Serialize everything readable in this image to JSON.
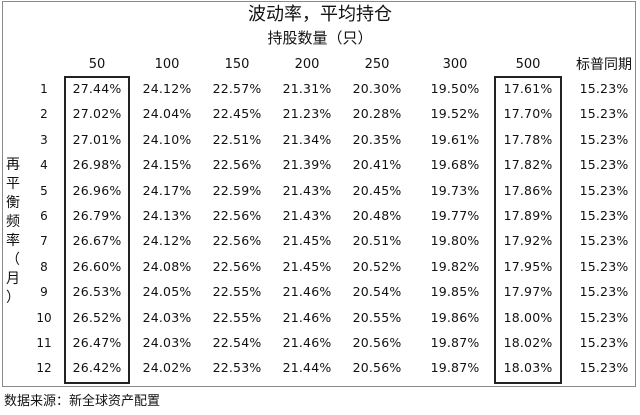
{
  "title": "波动率，平均持仓",
  "subtitle": "持股数量（只）",
  "columns": [
    "50",
    "100",
    "150",
    "200",
    "250",
    "300",
    "500",
    "标普同期"
  ],
  "vertical_label": [
    "再",
    "平",
    "衡",
    "频",
    "率",
    "（",
    "月",
    "）"
  ],
  "rows": [
    {
      "label": "1",
      "values": [
        "27.44%",
        "24.12%",
        "22.57%",
        "21.31%",
        "20.30%",
        "19.50%",
        "17.61%",
        "15.23%"
      ]
    },
    {
      "label": "2",
      "values": [
        "27.02%",
        "24.04%",
        "22.45%",
        "21.23%",
        "20.28%",
        "19.52%",
        "17.70%",
        "15.23%"
      ]
    },
    {
      "label": "3",
      "values": [
        "27.01%",
        "24.10%",
        "22.51%",
        "21.34%",
        "20.35%",
        "19.61%",
        "17.78%",
        "15.23%"
      ]
    },
    {
      "label": "4",
      "values": [
        "26.98%",
        "24.15%",
        "22.56%",
        "21.39%",
        "20.41%",
        "19.68%",
        "17.82%",
        "15.23%"
      ]
    },
    {
      "label": "5",
      "values": [
        "26.96%",
        "24.17%",
        "22.59%",
        "21.43%",
        "20.45%",
        "19.73%",
        "17.86%",
        "15.23%"
      ]
    },
    {
      "label": "6",
      "values": [
        "26.79%",
        "24.13%",
        "22.56%",
        "21.43%",
        "20.48%",
        "19.77%",
        "17.89%",
        "15.23%"
      ]
    },
    {
      "label": "7",
      "values": [
        "26.67%",
        "24.12%",
        "22.56%",
        "21.45%",
        "20.51%",
        "19.80%",
        "17.92%",
        "15.23%"
      ]
    },
    {
      "label": "8",
      "values": [
        "26.60%",
        "24.08%",
        "22.56%",
        "21.45%",
        "20.52%",
        "19.82%",
        "17.95%",
        "15.23%"
      ]
    },
    {
      "label": "9",
      "values": [
        "26.53%",
        "24.05%",
        "22.55%",
        "21.46%",
        "20.54%",
        "19.85%",
        "17.97%",
        "15.23%"
      ]
    },
    {
      "label": "10",
      "values": [
        "26.52%",
        "24.03%",
        "22.55%",
        "21.46%",
        "20.55%",
        "19.86%",
        "18.00%",
        "15.23%"
      ]
    },
    {
      "label": "11",
      "values": [
        "26.47%",
        "24.03%",
        "22.54%",
        "21.46%",
        "20.56%",
        "19.87%",
        "18.02%",
        "15.23%"
      ]
    },
    {
      "label": "12",
      "values": [
        "26.42%",
        "24.02%",
        "22.53%",
        "21.44%",
        "20.56%",
        "19.87%",
        "18.03%",
        "15.23%"
      ]
    }
  ],
  "footer": "数据来源：新全球资产配置"
}
